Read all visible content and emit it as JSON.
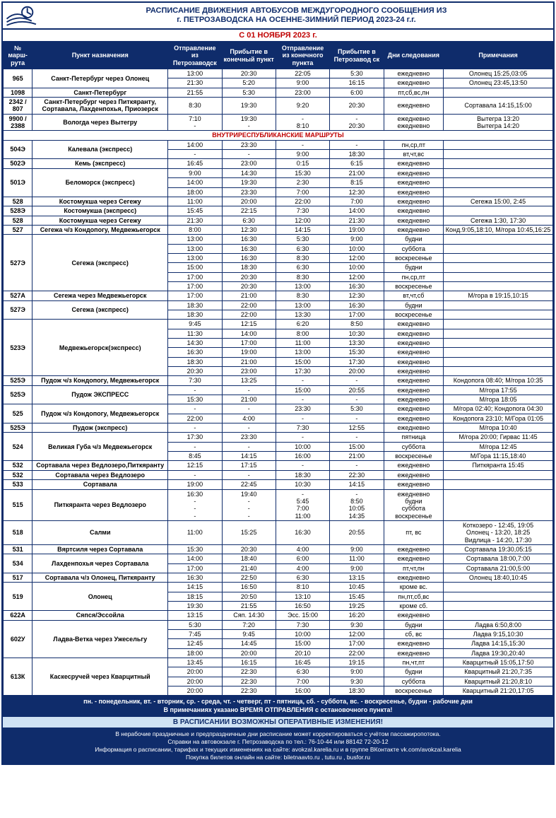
{
  "colors": {
    "primary": "#0f2c6b",
    "accent_red": "#c00000",
    "band_blue": "#cfe2f3",
    "white": "#ffffff"
  },
  "header": {
    "title_line1": "РАСПИСАНИЕ ДВИЖЕНИЯ АВТОБУСОВ МЕЖДУГОРОДНОГО СООБЩЕНИЯ ИЗ",
    "title_line2": "г. ПЕТРОЗАВОДСКА НА ОСЕННЕ-ЗИМНИЙ ПЕРИОД 2023-24 г.г.",
    "effective": "С 01 НОЯБРЯ 2023 г."
  },
  "columns": {
    "route": "№ марш-рута",
    "dest": "Пункт назначения",
    "dep": "Отправление из Петрозаводск",
    "arr": "Прибытие в конечный пункт",
    "dep2": "Отправление из конечного пункта",
    "arr2": "Прибытие в Петрозавод ск",
    "days": "Дни следования",
    "note": "Примечания"
  },
  "section_republic": "ВНУТРИРЕСПУБЛИКАНСКИЕ МАРШРУТЫ",
  "rows1": [
    {
      "r": "965",
      "d": "Санкт-Петербург через Олонец",
      "t": [
        "13:00",
        "20:30",
        "22:05",
        "5:30"
      ],
      "dy": "ежедневно",
      "n": "Олонец 15:25,03:05"
    },
    {
      "r": "965",
      "d": "Санкт-Петербург через Олонец",
      "t": [
        "21:30",
        "5:20",
        "9:00",
        "16:15"
      ],
      "dy": "ежедневно",
      "n": "Олонец 23:45,13:50"
    },
    {
      "r": "1098",
      "d": "Санкт-Петербург",
      "t": [
        "21:55",
        "5:30",
        "23:00",
        "6:00"
      ],
      "dy": "пт,сб,вс,пн",
      "n": ""
    },
    {
      "r": "2342 / 807",
      "d": "Санкт-Петербург через Питкяранту, Сортавала, Лахденпохья, Приозерск",
      "t": [
        "8:30",
        "19:30",
        "9:20",
        "20:30"
      ],
      "dy": "ежедневно",
      "n": "Сортавала 14:15,15:00"
    },
    {
      "r": "9900 / 2388",
      "d": "Вологда через Вытегру",
      "t": [
        "7:10\n-",
        "19:30\n-",
        "-\n8:10",
        "-\n20:30"
      ],
      "dy": "ежедневно\nежедневно",
      "n": "Вытегра 13:20\nВытегра 14:20"
    }
  ],
  "rows2": [
    {
      "r": "504Э",
      "d": "Калевала (экспресс)",
      "t": [
        "14:00",
        "23:30",
        "-",
        "-"
      ],
      "dy": "пн,ср,пт",
      "n": ""
    },
    {
      "r": "504Э",
      "d": "Калевала (экспресс)",
      "t": [
        "-",
        "-",
        "9:00",
        "18:30"
      ],
      "dy": "вт,чт,вс",
      "n": ""
    },
    {
      "r": "502Э",
      "d": "Кемь (экспресс)",
      "t": [
        "16:45",
        "23:00",
        "0:15",
        "6:15"
      ],
      "dy": "ежедневно",
      "n": ""
    },
    {
      "r": "501Э",
      "d": "Беломорск (экспресс)",
      "t": [
        "9:00",
        "14:30",
        "15:30",
        "21:00"
      ],
      "dy": "ежедневно",
      "n": ""
    },
    {
      "r": "501Э",
      "d": "Беломорск (экспресс)",
      "t": [
        "14:00",
        "19:30",
        "2:30",
        "8:15"
      ],
      "dy": "ежедневно",
      "n": ""
    },
    {
      "r": "501Э",
      "d": "Беломорск (экспресс)",
      "t": [
        "18:00",
        "23:30",
        "7:00",
        "12:30"
      ],
      "dy": "ежедневно",
      "n": ""
    },
    {
      "r": "528",
      "d": "Костомукша через Сегежу",
      "t": [
        "11:00",
        "20:00",
        "22:00",
        "7:00"
      ],
      "dy": "ежедневно",
      "n": "Сегежа 15:00, 2:45"
    },
    {
      "r": "528Э",
      "d": "Костомукша (экспресс)",
      "t": [
        "15:45",
        "22:15",
        "7:30",
        "14:00"
      ],
      "dy": "ежедневно",
      "n": ""
    },
    {
      "r": "528",
      "d": "Костомукша через Сегежу",
      "t": [
        "21:30",
        "6:30",
        "12:00",
        "21:30"
      ],
      "dy": "ежедневно",
      "n": "Сегежа 1:30, 17:30"
    },
    {
      "r": "527",
      "d": "Сегежа ч/з Кондопогу, Медвежьегорск",
      "t": [
        "8:00",
        "12:30",
        "14:15",
        "19:00"
      ],
      "dy": "ежедневно",
      "n": "Конд.9:05,18:10, М/гора 10:45,16:25"
    },
    {
      "r": "527Э",
      "d": "Сегежа (экспресс)",
      "t": [
        "13:00",
        "16:30",
        "5:30",
        "9:00"
      ],
      "dy": "будни",
      "n": ""
    },
    {
      "r": "527Э",
      "d": "Сегежа (экспресс)",
      "t": [
        "13:00",
        "16:30",
        "6:30",
        "10:00"
      ],
      "dy": "суббота",
      "n": ""
    },
    {
      "r": "527Э",
      "d": "Сегежа (экспресс)",
      "t": [
        "13:00",
        "16:30",
        "8:30",
        "12:00"
      ],
      "dy": "воскресенье",
      "n": ""
    },
    {
      "r": "527Э",
      "d": "Сегежа (экспресс)",
      "t": [
        "15:00",
        "18:30",
        "6:30",
        "10:00"
      ],
      "dy": "будни",
      "n": ""
    },
    {
      "r": "527Э",
      "d": "Сегежа (экспресс)",
      "t": [
        "17:00",
        "20:30",
        "8:30",
        "12:00"
      ],
      "dy": "пн,ср,пт",
      "n": ""
    },
    {
      "r": "527Э",
      "d": "Сегежа (экспресс)",
      "t": [
        "17:00",
        "20:30",
        "13:00",
        "16:30"
      ],
      "dy": "воскресенье",
      "n": ""
    },
    {
      "r": "527А",
      "d": "Сегежа через Медвежьегорск",
      "t": [
        "17:00",
        "21:00",
        "8:30",
        "12:30"
      ],
      "dy": "вт,чт,сб",
      "n": "М/гора в 19:15,10:15"
    },
    {
      "r": "527Э",
      "d": "Сегежа (экспресс)",
      "t": [
        "18:30",
        "22:00",
        "13:00",
        "16:30"
      ],
      "dy": "будни",
      "n": ""
    },
    {
      "r": "527Э",
      "d": "Сегежа (экспресс)",
      "t": [
        "18:30",
        "22:00",
        "13:30",
        "17:00"
      ],
      "dy": "воскресенье",
      "n": ""
    },
    {
      "r": "523Э",
      "d": "Медвежьегорск(экспресс)",
      "t": [
        "9:45",
        "12:15",
        "6:20",
        "8:50"
      ],
      "dy": "ежедневно",
      "n": ""
    },
    {
      "r": "523Э",
      "d": "Медвежьегорск(экспресс)",
      "t": [
        "11:30",
        "14:00",
        "8:00",
        "10:30"
      ],
      "dy": "ежедневно",
      "n": ""
    },
    {
      "r": "523Э",
      "d": "Медвежьегорск(экспресс)",
      "t": [
        "14:30",
        "17:00",
        "11:00",
        "13:30"
      ],
      "dy": "ежедневно",
      "n": ""
    },
    {
      "r": "523Э",
      "d": "Медвежьегорск(экспресс)",
      "t": [
        "16:30",
        "19:00",
        "13:00",
        "15:30"
      ],
      "dy": "ежедневно",
      "n": ""
    },
    {
      "r": "523Э",
      "d": "Медвежьегорск(экспресс)",
      "t": [
        "18:30",
        "21:00",
        "15:00",
        "17:30"
      ],
      "dy": "ежедневно",
      "n": ""
    },
    {
      "r": "523Э",
      "d": "Медвежьегорск(экспресс)",
      "t": [
        "20:30",
        "23:00",
        "17:30",
        "20:00"
      ],
      "dy": "ежедневно",
      "n": ""
    },
    {
      "r": "525Э",
      "d": "Пудож ч/з Кондопогу, Медвежьегорск",
      "t": [
        "7:30",
        "13:25",
        "-",
        "-"
      ],
      "dy": "ежедневно",
      "n": "Кондопога 08:40; М/гора 10:35"
    },
    {
      "r": "525Э",
      "d": "Пудож ЭКСПРЕСС",
      "t": [
        "-",
        "-",
        "15:00",
        "20:55"
      ],
      "dy": "ежедневно",
      "n": "М/гора 17:55"
    },
    {
      "r": "525Э",
      "d": "Пудож ЭКСПРЕСС",
      "t": [
        "15:30",
        "21:00",
        "-",
        "-"
      ],
      "dy": "ежедневно",
      "n": "М/гора 18:05"
    },
    {
      "r": "525",
      "d": "Пудож ч/з Кондопогу, Медвежьегорск",
      "t": [
        "-",
        "-",
        "23:30",
        "5:30"
      ],
      "dy": "ежедневно",
      "n": "М/гора 02:40; Кондопога 04:30"
    },
    {
      "r": "525",
      "d": "Пудож ч/з Кондопогу, Медвежьегорск",
      "t": [
        "22:00",
        "4:00",
        "-",
        "-"
      ],
      "dy": "ежедневно",
      "n": "Кондопога 23:10; М/Гора 01:05"
    },
    {
      "r": "525Э",
      "d": "Пудож (экспресс)",
      "t": [
        "-",
        "-",
        "7:30",
        "12:55"
      ],
      "dy": "ежедневно",
      "n": "М/гора 10:40"
    },
    {
      "r": "524",
      "d": "Великая Губа ч/з Медвежьегорск",
      "t": [
        "17:30",
        "23:30",
        "-",
        "-"
      ],
      "dy": "пятница",
      "n": "М/гора 20:00; Гирвас 11:45"
    },
    {
      "r": "524",
      "d": "Великая Губа ч/з Медвежьегорск",
      "t": [
        "-",
        "-",
        "10:00",
        "15:00"
      ],
      "dy": "суббота",
      "n": "М/гора 12:45"
    },
    {
      "r": "524",
      "d": "Великая Губа ч/з Медвежьегорск",
      "t": [
        "8:45",
        "14:15",
        "16:00",
        "21:00"
      ],
      "dy": "воскресенье",
      "n": "М/Гора 11:15,18:40"
    },
    {
      "r": "532",
      "d": "Сортавала через Ведлозеро,Питкяранту",
      "t": [
        "12:15",
        "17:15",
        "-",
        "-"
      ],
      "dy": "ежедневно",
      "n": "Питкяранта 15:45"
    },
    {
      "r": "532",
      "d": "Сортавала через Ведлозеро",
      "t": [
        "-",
        "-",
        "18:30",
        "22:30"
      ],
      "dy": "ежедневно",
      "n": ""
    },
    {
      "r": "533",
      "d": "Сортавала",
      "t": [
        "19:00",
        "22:45",
        "10:30",
        "14:15"
      ],
      "dy": "ежедневно",
      "n": ""
    },
    {
      "r": "515",
      "d": "Питкяранта через Ведлозеро",
      "t": [
        "16:30\n-\n-\n-",
        "19:40\n-\n-\n-",
        "-\n5:45\n7:00\n11:00",
        "-\n8:50\n10:05\n14:35"
      ],
      "dy": "ежедневно\nбудни\nсуббота\nвоскресенье",
      "n": ""
    },
    {
      "r": "518",
      "d": "Салми",
      "t": [
        "11:00",
        "15:25",
        "16:30",
        "20:55"
      ],
      "dy": "пт, вс",
      "n": "Коткозеро - 12:45, 19:05\nОлонец - 13:20, 18:25\nВидлица - 14:20, 17:30"
    },
    {
      "r": "531",
      "d": "Вяртсиля через Сортавала",
      "t": [
        "15:30",
        "20:30",
        "4:00",
        "9:00"
      ],
      "dy": "ежедневно",
      "n": "Сортавала 19:30,05:15"
    },
    {
      "r": "534",
      "d": "Лахденпохья через Сортавала",
      "t": [
        "14:00",
        "18:40",
        "6:00",
        "11:00"
      ],
      "dy": "ежедневно",
      "n": "Сортавала 18:00,7:00"
    },
    {
      "r": "534",
      "d": "Лахденпохья через Сортавала",
      "t": [
        "17:00",
        "21:40",
        "4:00",
        "9:00"
      ],
      "dy": "пт,чт,пн",
      "n": "Сортавала 21:00,5:00"
    },
    {
      "r": "517",
      "d": "Сортавала ч/з Олонец, Питкяранту",
      "t": [
        "16:30",
        "22:50",
        "6:30",
        "13:15"
      ],
      "dy": "ежедневно",
      "n": "Олонец 18:40,10:45"
    },
    {
      "r": "519",
      "d": "Олонец",
      "t": [
        "14:15",
        "16:50",
        "8:10",
        "10:45"
      ],
      "dy": "кроме вс.",
      "n": ""
    },
    {
      "r": "519",
      "d": "Олонец",
      "t": [
        "18:15",
        "20:50",
        "13:10",
        "15:45"
      ],
      "dy": "пн,пт,сб,вс",
      "n": ""
    },
    {
      "r": "519",
      "d": "Олонец",
      "t": [
        "19:30",
        "21:55",
        "16:50",
        "19:25"
      ],
      "dy": "кроме сб.",
      "n": ""
    },
    {
      "r": "622А",
      "d": "Сяпся/Эссойла",
      "t": [
        "13:15",
        "Сяп. 14:30",
        "Эсс. 15:00",
        "16:20"
      ],
      "dy": "ежедневно",
      "n": ""
    },
    {
      "r": "602У",
      "d": "Ладва-Ветка через Ужесельгу",
      "t": [
        "5:30",
        "7:20",
        "7:30",
        "9:30"
      ],
      "dy": "будни",
      "n": "Ладва 6:50,8:00"
    },
    {
      "r": "602У",
      "d": "Ладва-Ветка через Ужесельгу",
      "t": [
        "7:45",
        "9:45",
        "10:00",
        "12:00"
      ],
      "dy": "сб, вс",
      "n": "Ладва 9:15,10:30"
    },
    {
      "r": "602У",
      "d": "Ладва-Ветка через Ужесельгу",
      "t": [
        "12:45",
        "14:45",
        "15:00",
        "17:00"
      ],
      "dy": "ежедневно",
      "n": "Ладва 14:15,15:30"
    },
    {
      "r": "602У",
      "d": "Ладва-Ветка через Ужесельгу",
      "t": [
        "18:00",
        "20:00",
        "20:10",
        "22:00"
      ],
      "dy": "ежедневно",
      "n": "Ладва 19:30,20:40"
    },
    {
      "r": "613К",
      "d": "Каскесручей через Кварцитный",
      "t": [
        "13:45",
        "16:15",
        "16:45",
        "19:15"
      ],
      "dy": "пн,чт,пт",
      "n": "Кварцитный 15:05,17:50"
    },
    {
      "r": "613К",
      "d": "Каскесручей через Кварцитный",
      "t": [
        "20:00",
        "22:30",
        "6:30",
        "9:00"
      ],
      "dy": "будни",
      "n": "Кварцитный 21:20,7:35"
    },
    {
      "r": "613К",
      "d": "Каскесручей через Кварцитный",
      "t": [
        "20:00",
        "22:30",
        "7:00",
        "9:30"
      ],
      "dy": "суббота",
      "n": "Кварцитный 21:20,8:10"
    },
    {
      "r": "613К",
      "d": "Каскесручей через Кварцитный",
      "t": [
        "20:00",
        "22:30",
        "16:00",
        "18:30"
      ],
      "dy": "воскресенье",
      "n": "Кварцитный 21:20,17:05"
    }
  ],
  "footer": {
    "legend": "пн. - понедельник, вт. - вторник, ср. - среда, чт. - четверг, пт - пятница, сб. - суббота, вс. - воскресенье, будни - рабочие дни\nВ примечаниях указано ВРЕМЯ ОТПРАВЛЕНИЯ с остановочного пункта!",
    "warn": "В РАСПИСАНИИ ВОЗМОЖНЫ ОПЕРАТИВНЫЕ ИЗМЕНЕНИЯ!",
    "info": "В нерабочие праздничные и предпраздничные дни расписание может корректироваться с учётом пассажиропотока.\nСправки на автовокзале г. Петрозаводска по тел.: 76-10-44 или 88142 72-20-12\nИнформация о расписании, тарифах и текущих изменениях на сайте: avokzal.karelia.ru и в группе ВКонтакте vk.com/avokzal.karelia\nПокупка билетов онлайн на сайте: biletnaavto.ru , tutu.ru , busfor.ru"
  }
}
